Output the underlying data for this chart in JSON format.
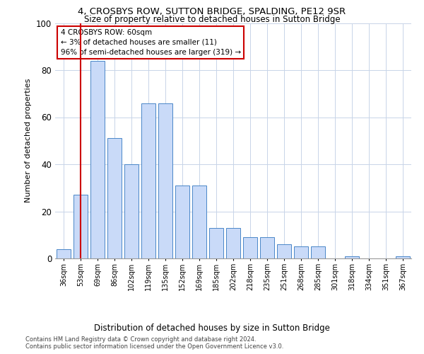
{
  "title": "4, CROSBYS ROW, SUTTON BRIDGE, SPALDING, PE12 9SR",
  "subtitle": "Size of property relative to detached houses in Sutton Bridge",
  "xlabel": "Distribution of detached houses by size in Sutton Bridge",
  "ylabel": "Number of detached properties",
  "footnote1": "Contains HM Land Registry data © Crown copyright and database right 2024.",
  "footnote2": "Contains public sector information licensed under the Open Government Licence v3.0.",
  "annotation_line1": "4 CROSBYS ROW: 60sqm",
  "annotation_line2": "← 3% of detached houses are smaller (11)",
  "annotation_line3": "96% of semi-detached houses are larger (319) →",
  "bar_color": "#c9daf8",
  "bar_edge_color": "#4a86c8",
  "ref_line_color": "#cc0000",
  "ref_line_x": 1,
  "categories": [
    "36sqm",
    "53sqm",
    "69sqm",
    "86sqm",
    "102sqm",
    "119sqm",
    "135sqm",
    "152sqm",
    "169sqm",
    "185sqm",
    "202sqm",
    "218sqm",
    "235sqm",
    "251sqm",
    "268sqm",
    "285sqm",
    "301sqm",
    "318sqm",
    "334sqm",
    "351sqm",
    "367sqm"
  ],
  "values": [
    4,
    27,
    84,
    51,
    40,
    66,
    66,
    31,
    31,
    13,
    13,
    9,
    9,
    6,
    5,
    5,
    0,
    1,
    0,
    0,
    1
  ],
  "ylim": [
    0,
    100
  ],
  "yticks": [
    0,
    20,
    40,
    60,
    80,
    100
  ],
  "background_color": "#ffffff",
  "grid_color": "#c8d4e8",
  "title_fontsize": 9.5,
  "subtitle_fontsize": 8.5,
  "ylabel_fontsize": 8,
  "xlabel_fontsize": 8.5,
  "annot_fontsize": 7.5,
  "footnote_fontsize": 6
}
